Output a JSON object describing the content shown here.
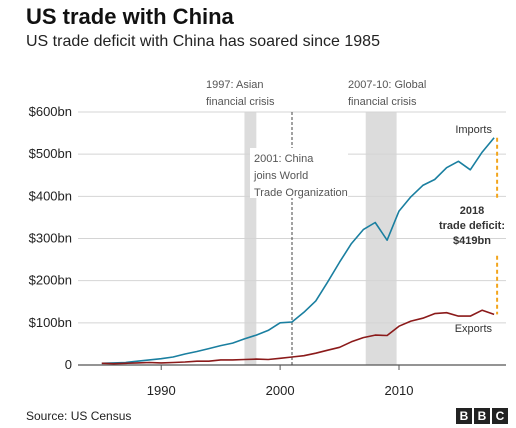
{
  "title": "US trade with China",
  "subtitle": "US trade deficit with China has soared since 1985",
  "source": "Source: US Census",
  "logo": {
    "letters": [
      "B",
      "B",
      "C"
    ]
  },
  "colors": {
    "imports": "#1a7fa0",
    "exports": "#8b1a1a",
    "deficit": "#f2a51c",
    "shade": "#dcdcdc",
    "grid": "#d4d4d4",
    "axis": "#555555",
    "annotation": "#555555"
  },
  "chart_data": {
    "type": "line",
    "xlim": [
      1983,
      2019
    ],
    "ylim": [
      0,
      600
    ],
    "y_ticks": [
      {
        "value": 0,
        "label": "0"
      },
      {
        "value": 100,
        "label": "$100bn"
      },
      {
        "value": 200,
        "label": "$200bn"
      },
      {
        "value": 300,
        "label": "$300bn"
      },
      {
        "value": 400,
        "label": "$400bn"
      },
      {
        "value": 500,
        "label": "$500bn"
      },
      {
        "value": 600,
        "label": "$600bn"
      }
    ],
    "x_ticks": [
      {
        "value": 1990,
        "label": "1990"
      },
      {
        "value": 2000,
        "label": "2000"
      },
      {
        "value": 2010,
        "label": "2010"
      }
    ],
    "grid": true,
    "series": [
      {
        "name": "Imports",
        "key": "imports",
        "x": [
          1985,
          1986,
          1987,
          1988,
          1989,
          1990,
          1991,
          1992,
          1993,
          1994,
          1995,
          1996,
          1997,
          1998,
          1999,
          2000,
          2001,
          2002,
          2003,
          2004,
          2005,
          2006,
          2007,
          2008,
          2009,
          2010,
          2011,
          2012,
          2013,
          2014,
          2015,
          2016,
          2017,
          2018
        ],
        "values": [
          4,
          5,
          6,
          9,
          12,
          15,
          19,
          26,
          32,
          39,
          46,
          52,
          62,
          71,
          82,
          100,
          102,
          125,
          152,
          197,
          244,
          288,
          321,
          338,
          296,
          365,
          399,
          426,
          440,
          468,
          483,
          463,
          505,
          539
        ]
      },
      {
        "name": "Exports",
        "key": "exports",
        "x": [
          1985,
          1986,
          1987,
          1988,
          1989,
          1990,
          1991,
          1992,
          1993,
          1994,
          1995,
          1996,
          1997,
          1998,
          1999,
          2000,
          2001,
          2002,
          2003,
          2004,
          2005,
          2006,
          2007,
          2008,
          2009,
          2010,
          2011,
          2012,
          2013,
          2014,
          2015,
          2016,
          2017,
          2018
        ],
        "values": [
          4,
          3,
          4,
          5,
          6,
          5,
          6,
          7,
          9,
          9,
          12,
          12,
          13,
          14,
          13,
          16,
          19,
          22,
          28,
          35,
          42,
          55,
          65,
          71,
          70,
          92,
          104,
          111,
          122,
          124,
          116,
          116,
          130,
          120
        ]
      }
    ],
    "shaded_periods": [
      {
        "from": 1997,
        "to": 1998,
        "label_lines": [
          "1997: Asian",
          "financial crisis"
        ]
      },
      {
        "from": 2007.2,
        "to": 2009.8,
        "label_lines": [
          "2007-10: Global",
          "financial crisis"
        ]
      }
    ],
    "events": [
      {
        "x": 2001,
        "label_lines": [
          "2001: China",
          "joins World",
          "Trade Organization"
        ]
      }
    ],
    "deficit": {
      "x": 2018,
      "from": 120,
      "to": 539,
      "label_lines": [
        "2018",
        "trade deficit:",
        "$419bn"
      ]
    }
  }
}
